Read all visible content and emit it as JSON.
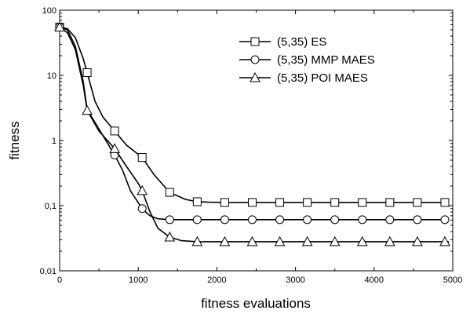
{
  "chart_data": {
    "type": "line",
    "title": "",
    "xlabel": "fitness evaluations",
    "ylabel": "fitness",
    "xlim": [
      0,
      5000
    ],
    "ylim": [
      0.01,
      100
    ],
    "yscale": "log",
    "grid": false,
    "legend_position": "top-right",
    "x_ticks": [
      {
        "value": 0,
        "label": "0"
      },
      {
        "value": 1000,
        "label": "1000"
      },
      {
        "value": 2000,
        "label": "2000"
      },
      {
        "value": 3000,
        "label": "3000"
      },
      {
        "value": 4000,
        "label": "4000"
      },
      {
        "value": 5000,
        "label": "5000"
      }
    ],
    "y_ticks": [
      {
        "value": 100,
        "label": "100"
      },
      {
        "value": 10,
        "label": "10"
      },
      {
        "value": 1,
        "label": "1"
      },
      {
        "value": 0.1,
        "label": "0,1"
      },
      {
        "value": 0.01,
        "label": "0,01"
      }
    ],
    "series": [
      {
        "name": "(5,35) ES",
        "marker": "square",
        "x": [
          0,
          100,
          200,
          300,
          350,
          450,
          550,
          700,
          850,
          1050,
          1200,
          1400,
          1600,
          1750,
          1900,
          2100,
          2500,
          3000,
          3500,
          4000,
          4500,
          4950
        ],
        "y": [
          55,
          52,
          38,
          18,
          11,
          4,
          2.3,
          1.4,
          0.85,
          0.55,
          0.3,
          0.16,
          0.125,
          0.115,
          0.113,
          0.112,
          0.112,
          0.112,
          0.112,
          0.112,
          0.112,
          0.112
        ],
        "markers_x": [
          0,
          350,
          700,
          1050,
          1400,
          1750,
          2100,
          2450,
          2800,
          3150,
          3500,
          3850,
          4200,
          4550,
          4900
        ]
      },
      {
        "name": "(5,35) MMP MAES",
        "marker": "circle",
        "x": [
          0,
          100,
          200,
          300,
          350,
          500,
          700,
          800,
          900,
          1050,
          1150,
          1250,
          1400,
          1600,
          1750,
          2000,
          2500,
          3000,
          3500,
          4000,
          4500,
          4950
        ],
        "y": [
          55,
          50,
          28,
          8,
          3,
          1.5,
          0.6,
          0.35,
          0.17,
          0.09,
          0.07,
          0.063,
          0.061,
          0.061,
          0.061,
          0.061,
          0.061,
          0.061,
          0.061,
          0.061,
          0.061,
          0.061
        ],
        "markers_x": [
          0,
          700,
          1050,
          1400,
          1750,
          2100,
          2450,
          2800,
          3150,
          3500,
          3850,
          4200,
          4550,
          4900
        ]
      },
      {
        "name": "(5,35) POI MAES",
        "marker": "triangle",
        "x": [
          0,
          100,
          200,
          300,
          350,
          500,
          700,
          850,
          1000,
          1050,
          1150,
          1250,
          1400,
          1550,
          1750,
          2000,
          2500,
          3000,
          3500,
          4000,
          4500,
          4950
        ],
        "y": [
          55,
          45,
          25,
          7,
          2.9,
          1.4,
          0.75,
          0.4,
          0.22,
          0.17,
          0.08,
          0.045,
          0.033,
          0.029,
          0.028,
          0.028,
          0.028,
          0.028,
          0.028,
          0.028,
          0.028,
          0.028
        ],
        "markers_x": [
          0,
          350,
          700,
          1050,
          1400,
          1750,
          2100,
          2450,
          2800,
          3150,
          3500,
          3850,
          4200,
          4550,
          4900
        ]
      }
    ]
  }
}
